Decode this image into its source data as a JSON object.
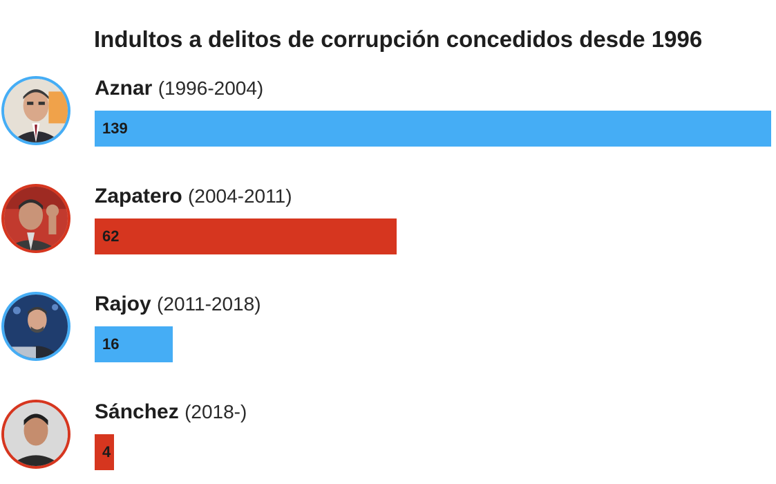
{
  "chart_data": {
    "type": "bar",
    "orientation": "horizontal",
    "title": "Indultos a delitos de corrupción concedidos desde 1996",
    "xlabel": "",
    "ylabel": "",
    "xlim": [
      0,
      139
    ],
    "grid": false,
    "categories": [
      "Aznar",
      "Zapatero",
      "Rajoy",
      "Sánchez"
    ],
    "periods": [
      "(1996-2004)",
      "(2004-2011)",
      "(2011-2018)",
      "(2018-)"
    ],
    "values": [
      139,
      62,
      16,
      4
    ],
    "value_labels": [
      "139",
      "62",
      "16",
      "4"
    ],
    "colors": [
      "#45adf5",
      "#d6361f",
      "#45adf5",
      "#d6361f"
    ]
  }
}
